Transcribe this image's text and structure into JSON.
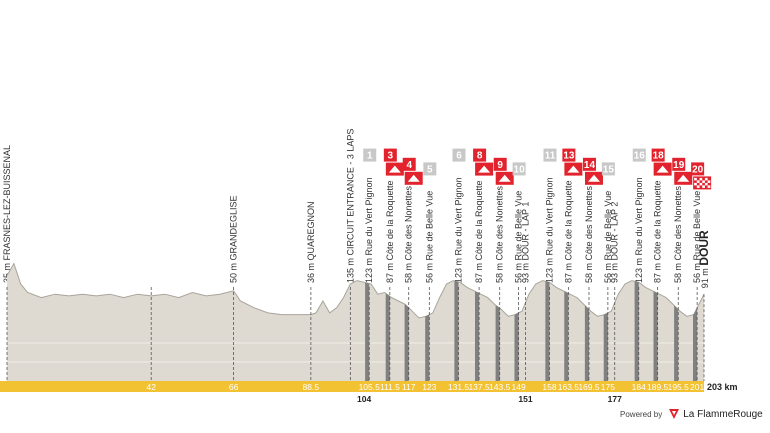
{
  "colors": {
    "profile_fill": "#dedad1",
    "profile_line": "#a9a49b",
    "climb": "#808080",
    "km_bar": "#f2c233",
    "flag_grey": "#c8c8c8",
    "flag_red": "#e2232d",
    "dash": "#555555"
  },
  "profile": {
    "total_label": "203 km",
    "bottom_km": [
      {
        "km": 104,
        "label": "104"
      },
      {
        "km": 151,
        "label": "151"
      },
      {
        "km": 177,
        "label": "177"
      }
    ]
  },
  "waypoints": [
    {
      "km": 0,
      "text": "35 m FRASNES-LEZ-BUISSENAL",
      "km_label": ""
    },
    {
      "km": 42,
      "text": "",
      "km_label": "42"
    },
    {
      "km": 66,
      "text": "50 m GRANDEGLISE",
      "km_label": "66"
    },
    {
      "km": 88.5,
      "text": "36 m QUAREGNON",
      "km_label": "88.5"
    },
    {
      "km": 100,
      "text": "135 m CIRCUIT ENTRANCE - 3 LAPS",
      "km_label": ""
    },
    {
      "km": 105.5,
      "text": "123 m Rue du Vert Pignon",
      "km_label": "105.5",
      "flag": "1",
      "flag_type": "grey"
    },
    {
      "km": 111.5,
      "text": "87 m Côte de la Roquette",
      "km_label": "111.5",
      "flag": "3",
      "flag_type": "red-mountain"
    },
    {
      "km": 117,
      "text": "58 m Côte des Nonettes",
      "km_label": "117",
      "flag": "4",
      "flag_type": "red-mountain"
    },
    {
      "km": 123,
      "text": "56 m Rue de Belle Vue",
      "km_label": "123",
      "flag": "5",
      "flag_type": "grey"
    },
    {
      "km": 131.5,
      "text": "123 m Rue du Vert Pignon",
      "km_label": "131.5",
      "flag": "6",
      "flag_type": "grey"
    },
    {
      "km": 137.5,
      "text": "87 m Côte de la Roquette",
      "km_label": "137.5",
      "flag": "8",
      "flag_type": "red-mountain"
    },
    {
      "km": 143.5,
      "text": "58 m Côte des Nonettes",
      "km_label": "143.5",
      "flag": "9",
      "flag_type": "red-mountain"
    },
    {
      "km": 149,
      "text": "56 m Rue de Belle Vue",
      "km_label": "149",
      "flag": "10",
      "flag_type": "grey"
    },
    {
      "km": 151,
      "text": "93 m DOUR - LAP 1",
      "km_label": ""
    },
    {
      "km": 158,
      "text": "123 m Rue du Vert Pignon",
      "km_label": "158",
      "flag": "11",
      "flag_type": "grey"
    },
    {
      "km": 163.5,
      "text": "87 m Côte de la Roquette",
      "km_label": "163.5",
      "flag": "13",
      "flag_type": "red-mountain"
    },
    {
      "km": 169.5,
      "text": "58 m Côte des Nonettes",
      "km_label": "169.5",
      "flag": "14",
      "flag_type": "red-mountain"
    },
    {
      "km": 175,
      "text": "56 m Rue de Belle Vue",
      "km_label": "175",
      "flag": "15",
      "flag_type": "grey"
    },
    {
      "km": 177,
      "text": "93 m DOUR - LAP 2",
      "km_label": ""
    },
    {
      "km": 184,
      "text": "123 m Rue du Vert Pignon",
      "km_label": "184",
      "flag": "16",
      "flag_type": "grey"
    },
    {
      "km": 189.5,
      "text": "87 m Côte de la Roquette",
      "km_label": "189.5",
      "flag": "18",
      "flag_type": "red-mountain"
    },
    {
      "km": 195.5,
      "text": "58 m Côte des Nonettes",
      "km_label": "195.5",
      "flag": "19",
      "flag_type": "red-mountain"
    },
    {
      "km": 201,
      "text": "56 m Rue de Belle Vue",
      "km_label": "201",
      "flag": "20",
      "flag_type": "red-finish"
    },
    {
      "km": 203,
      "text_prefix": "91 m",
      "text_bold": "DOUR",
      "km_label": "",
      "finish": true
    }
  ],
  "elevation": [
    [
      0,
      35
    ],
    [
      2,
      42
    ],
    [
      4,
      30
    ],
    [
      6,
      25
    ],
    [
      10,
      22
    ],
    [
      14,
      24
    ],
    [
      18,
      23
    ],
    [
      22,
      24
    ],
    [
      26,
      23
    ],
    [
      30,
      24
    ],
    [
      34,
      22
    ],
    [
      38,
      24
    ],
    [
      42,
      23
    ],
    [
      46,
      24
    ],
    [
      50,
      22
    ],
    [
      54,
      25
    ],
    [
      58,
      23
    ],
    [
      62,
      24
    ],
    [
      66,
      26
    ],
    [
      68,
      20
    ],
    [
      72,
      16
    ],
    [
      76,
      13
    ],
    [
      80,
      12
    ],
    [
      84,
      12
    ],
    [
      88.5,
      12
    ],
    [
      90,
      13
    ],
    [
      92,
      20
    ],
    [
      94,
      13
    ],
    [
      96,
      16
    ],
    [
      98,
      22
    ],
    [
      100,
      30
    ],
    [
      102,
      32
    ],
    [
      104,
      31
    ],
    [
      106,
      30
    ],
    [
      108,
      24
    ],
    [
      110,
      25
    ],
    [
      112,
      22
    ],
    [
      114,
      20
    ],
    [
      116,
      18
    ],
    [
      118,
      14
    ],
    [
      120,
      10
    ],
    [
      122,
      11
    ],
    [
      124,
      13
    ],
    [
      126,
      22
    ],
    [
      128,
      30
    ],
    [
      130,
      32
    ],
    [
      132,
      31
    ],
    [
      134,
      28
    ],
    [
      136,
      26
    ],
    [
      138,
      24
    ],
    [
      140,
      22
    ],
    [
      142,
      18
    ],
    [
      144,
      15
    ],
    [
      146,
      11
    ],
    [
      148,
      12
    ],
    [
      150,
      14
    ],
    [
      152,
      24
    ],
    [
      154,
      30
    ],
    [
      156,
      32
    ],
    [
      158,
      31
    ],
    [
      160,
      28
    ],
    [
      162,
      26
    ],
    [
      164,
      24
    ],
    [
      166,
      22
    ],
    [
      168,
      18
    ],
    [
      170,
      14
    ],
    [
      172,
      11
    ],
    [
      174,
      12
    ],
    [
      176,
      14
    ],
    [
      178,
      24
    ],
    [
      180,
      30
    ],
    [
      182,
      32
    ],
    [
      184,
      31
    ],
    [
      186,
      28
    ],
    [
      188,
      26
    ],
    [
      190,
      24
    ],
    [
      192,
      22
    ],
    [
      194,
      18
    ],
    [
      196,
      14
    ],
    [
      198,
      11
    ],
    [
      200,
      12
    ],
    [
      203,
      24
    ]
  ],
  "footer": {
    "powered_by": "Powered by",
    "brand": "La FlammeRouge"
  }
}
